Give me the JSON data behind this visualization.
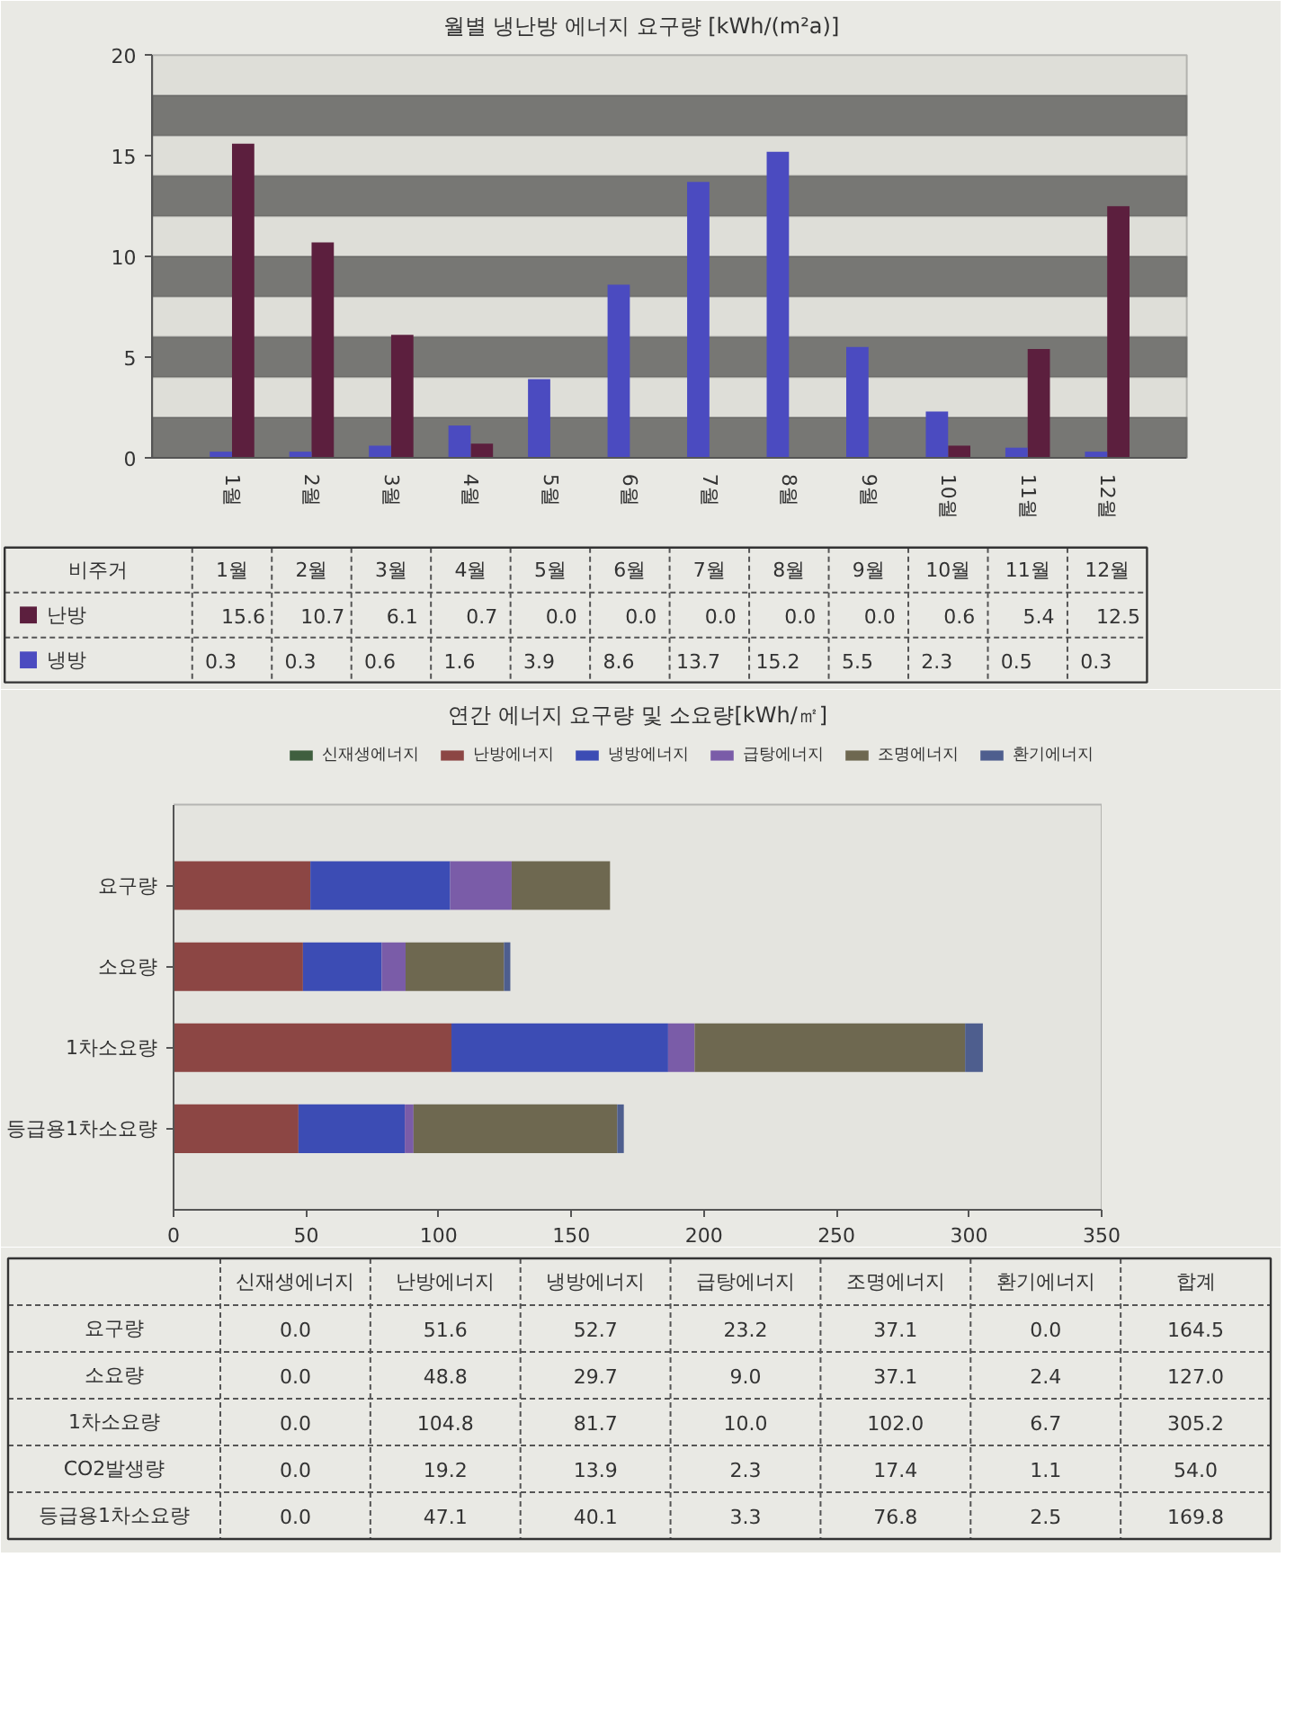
{
  "chart_data": [
    {
      "type": "bar",
      "title": "월별 냉난방 에너지 요구량 [kWh/(m²a)]",
      "categories": [
        "1월",
        "2월",
        "3월",
        "4월",
        "5월",
        "6월",
        "7월",
        "8월",
        "9월",
        "10월",
        "11월",
        "12월"
      ],
      "series": [
        {
          "name": "난방",
          "color": "#5c1f3e",
          "values": [
            15.6,
            10.7,
            6.1,
            0.7,
            0,
            0,
            0,
            0,
            0,
            0.6,
            5.4,
            12.5
          ],
          "value_labels": [
            "15.6",
            "10.7",
            "6.1",
            "0.7",
            "0.0",
            "0.0",
            "0.0",
            "0.0",
            "0.0",
            "0.6",
            "5.4",
            "12.5"
          ]
        },
        {
          "name": "냉방",
          "color": "#4b4bc0",
          "values": [
            0.3,
            0.3,
            0.6,
            1.6,
            3.9,
            8.6,
            13.7,
            15.2,
            5.5,
            2.3,
            0.5,
            0.3
          ],
          "value_labels": [
            "0.3",
            "0.3",
            "0.6",
            "1.6",
            "3.9",
            "8.6",
            "13.7",
            "15.2",
            "5.5",
            "2.3",
            "0.5",
            "0.3"
          ]
        }
      ],
      "ylim": [
        0,
        20
      ],
      "yticks": [
        0,
        5,
        10,
        15,
        20
      ],
      "bands": [
        {
          "axis": "y",
          "from": 0,
          "to": 2,
          "color": "#777774"
        },
        {
          "axis": "y",
          "from": 4,
          "to": 6,
          "color": "#777774"
        },
        {
          "axis": "y",
          "from": 8,
          "to": 10,
          "color": "#777774"
        },
        {
          "axis": "y",
          "from": 12,
          "to": 14,
          "color": "#777774"
        },
        {
          "axis": "y",
          "from": 16,
          "to": 18,
          "color": "#777774"
        }
      ],
      "legend": "bottom",
      "legend_title": "비주거"
    },
    {
      "type": "bar",
      "title": "연간 에너지 요구량 및 소요량[kWh/㎡]",
      "orientation": "horizontal",
      "stacked": true,
      "categories": [
        "요구량",
        "소요량",
        "1차소요량",
        "등급용1차소요량"
      ],
      "series": [
        {
          "name": "신재생에너지",
          "color": "#3f5f3f",
          "values": [
            0,
            0,
            0,
            0
          ]
        },
        {
          "name": "난방에너지",
          "color": "#8c4644",
          "values": [
            51.6,
            48.8,
            104.8,
            47.1
          ]
        },
        {
          "name": "냉방에너지",
          "color": "#3c4cb4",
          "values": [
            52.7,
            29.7,
            81.7,
            40.1
          ]
        },
        {
          "name": "급탕에너지",
          "color": "#7a5ca8",
          "values": [
            23.2,
            9,
            10,
            3.3
          ]
        },
        {
          "name": "조명에너지",
          "color": "#6e6850",
          "values": [
            37.1,
            37.1,
            102,
            76.8
          ]
        },
        {
          "name": "환기에너지",
          "color": "#4e5e8e",
          "values": [
            0,
            2.4,
            6.7,
            2.5
          ]
        }
      ],
      "xlim": [
        0,
        350
      ],
      "xticks": [
        0,
        50,
        100,
        150,
        200,
        250,
        300,
        350
      ],
      "legend": "top right"
    },
    {
      "type": "other",
      "categories": [
        "신재생에너지",
        "난방에너지",
        "냉방에너지",
        "급탕에너지",
        "조명에너지",
        "환기에너지",
        "합계"
      ],
      "y_categories": [
        "요구량",
        "소요량",
        "1차소요량",
        "CO2발생량",
        "등급용1차소요량"
      ],
      "cell_labels": [
        [
          "0.0",
          "51.6",
          "52.7",
          "23.2",
          "37.1",
          "0.0",
          "164.5"
        ],
        [
          "0.0",
          "48.8",
          "29.7",
          "9.0",
          "37.1",
          "2.4",
          "127.0"
        ],
        [
          "0.0",
          "104.8",
          "81.7",
          "10.0",
          "102.0",
          "6.7",
          "305.2"
        ],
        [
          "0.0",
          "19.2",
          "13.9",
          "2.3",
          "17.4",
          "1.1",
          "54.0"
        ],
        [
          "0.0",
          "47.1",
          "40.1",
          "3.3",
          "76.8",
          "2.5",
          "169.8"
        ]
      ]
    }
  ]
}
